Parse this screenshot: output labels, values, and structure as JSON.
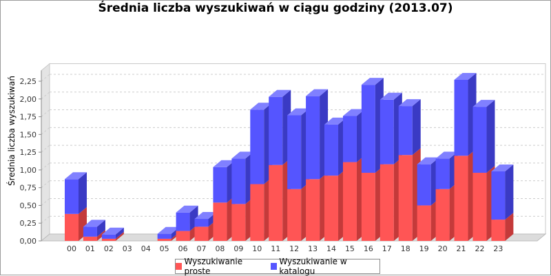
{
  "chart_data": {
    "type": "bar",
    "stacked": true,
    "style": "3d",
    "title": "Średnia liczba wyszukiwań w ciągu godziny (2013.07)",
    "xlabel": "",
    "ylabel": "Średnia liczba wyszukiwań",
    "ylim": [
      0,
      2.4
    ],
    "yticks": [
      "0,00",
      "0,25",
      "0,50",
      "0,75",
      "1,00",
      "1,25",
      "1,50",
      "1,75",
      "2,00",
      "2,25"
    ],
    "ytick_values": [
      0,
      0.25,
      0.5,
      0.75,
      1.0,
      1.25,
      1.5,
      1.75,
      2.0,
      2.25
    ],
    "categories": [
      "00",
      "01",
      "02",
      "03",
      "04",
      "05",
      "06",
      "07",
      "08",
      "09",
      "10",
      "11",
      "12",
      "13",
      "14",
      "15",
      "16",
      "17",
      "18",
      "19",
      "20",
      "21",
      "22",
      "23"
    ],
    "series": [
      {
        "name": "Wyszukiwanie proste",
        "color": "#ff5555",
        "values": [
          0.38,
          0.06,
          0.03,
          0,
          0,
          0.03,
          0.14,
          0.2,
          0.54,
          0.52,
          0.8,
          1.07,
          0.73,
          0.87,
          0.92,
          1.11,
          0.96,
          1.08,
          1.21,
          0.5,
          0.73,
          1.2,
          0.96,
          0.3
        ]
      },
      {
        "name": "Wyszukiwanie w katalogu",
        "color": "#5555ff",
        "values": [
          0.49,
          0.14,
          0.06,
          0,
          0,
          0.07,
          0.26,
          0.11,
          0.5,
          0.64,
          1.05,
          0.96,
          1.04,
          1.17,
          0.72,
          0.65,
          1.24,
          0.91,
          0.69,
          0.58,
          0.43,
          1.07,
          0.93,
          0.68
        ]
      }
    ],
    "legend_position": "bottom",
    "grid": true
  }
}
